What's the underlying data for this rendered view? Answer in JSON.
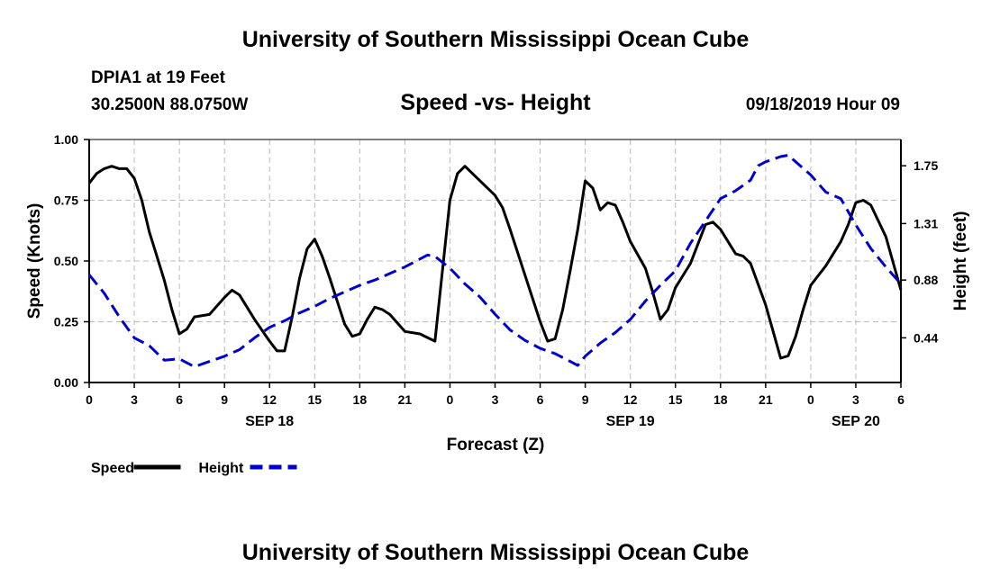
{
  "header": {
    "title": "University of Southern Mississippi Ocean Cube",
    "station": "DPIA1 at 19 Feet",
    "coords": "30.2500N 88.0750W",
    "subtitle": "Speed -vs- Height",
    "datetime": "09/18/2019 Hour 09"
  },
  "footer": {
    "title": "University of Southern Mississippi Ocean Cube"
  },
  "chart_data": {
    "type": "line",
    "title": "Speed -vs- Height",
    "xlabel": "Forecast (Z)",
    "ylabel": "Speed (Knots)",
    "y2label": "Height (feet)",
    "x_unit": "hours since 2019-09-18 00Z",
    "xlim": [
      0,
      54
    ],
    "ylim": [
      0,
      1.0
    ],
    "y2lim": [
      0.1,
      1.95
    ],
    "grid": true,
    "x_ticks": [
      {
        "x": 0,
        "label": "0"
      },
      {
        "x": 3,
        "label": "3"
      },
      {
        "x": 6,
        "label": "6"
      },
      {
        "x": 9,
        "label": "9"
      },
      {
        "x": 12,
        "label": "12"
      },
      {
        "x": 15,
        "label": "15"
      },
      {
        "x": 18,
        "label": "18"
      },
      {
        "x": 21,
        "label": "21"
      },
      {
        "x": 24,
        "label": "0"
      },
      {
        "x": 27,
        "label": "3"
      },
      {
        "x": 30,
        "label": "6"
      },
      {
        "x": 33,
        "label": "9"
      },
      {
        "x": 36,
        "label": "12"
      },
      {
        "x": 39,
        "label": "15"
      },
      {
        "x": 42,
        "label": "18"
      },
      {
        "x": 45,
        "label": "21"
      },
      {
        "x": 48,
        "label": "0"
      },
      {
        "x": 51,
        "label": "3"
      },
      {
        "x": 54,
        "label": "6"
      }
    ],
    "date_labels": [
      {
        "x": 12,
        "label": "SEP 18"
      },
      {
        "x": 36,
        "label": "SEP 19"
      },
      {
        "x": 51,
        "label": "SEP 20"
      }
    ],
    "y_ticks": [
      {
        "v": 0.0,
        "label": "0.00"
      },
      {
        "v": 0.25,
        "label": "0.25"
      },
      {
        "v": 0.5,
        "label": "0.50"
      },
      {
        "v": 0.75,
        "label": "0.75"
      },
      {
        "v": 1.0,
        "label": "1.00"
      }
    ],
    "y2_ticks": [
      {
        "v": 0.44,
        "label": "0.44"
      },
      {
        "v": 0.88,
        "label": "0.88"
      },
      {
        "v": 1.31,
        "label": "1.31"
      },
      {
        "v": 1.75,
        "label": "1.75"
      }
    ],
    "series": [
      {
        "name": "Speed",
        "axis": "left",
        "color": "#000000",
        "dash": "",
        "points": [
          [
            0,
            0.82
          ],
          [
            0.5,
            0.86
          ],
          [
            1,
            0.88
          ],
          [
            1.5,
            0.89
          ],
          [
            2,
            0.88
          ],
          [
            2.5,
            0.88
          ],
          [
            3,
            0.84
          ],
          [
            3.5,
            0.75
          ],
          [
            4,
            0.62
          ],
          [
            4.5,
            0.52
          ],
          [
            5,
            0.42
          ],
          [
            5.5,
            0.3
          ],
          [
            6,
            0.2
          ],
          [
            6.5,
            0.22
          ],
          [
            7,
            0.27
          ],
          [
            8,
            0.28
          ],
          [
            9,
            0.35
          ],
          [
            9.5,
            0.38
          ],
          [
            10,
            0.36
          ],
          [
            11,
            0.26
          ],
          [
            12,
            0.17
          ],
          [
            12.5,
            0.13
          ],
          [
            13,
            0.13
          ],
          [
            13.5,
            0.27
          ],
          [
            14,
            0.43
          ],
          [
            14.5,
            0.55
          ],
          [
            15,
            0.59
          ],
          [
            15.5,
            0.52
          ],
          [
            16,
            0.43
          ],
          [
            17,
            0.24
          ],
          [
            17.5,
            0.19
          ],
          [
            18,
            0.2
          ],
          [
            18.5,
            0.26
          ],
          [
            19,
            0.31
          ],
          [
            19.5,
            0.3
          ],
          [
            20,
            0.28
          ],
          [
            21,
            0.21
          ],
          [
            22,
            0.2
          ],
          [
            23,
            0.17
          ],
          [
            24,
            0.75
          ],
          [
            24.5,
            0.86
          ],
          [
            25,
            0.89
          ],
          [
            26,
            0.83
          ],
          [
            27,
            0.77
          ],
          [
            27.5,
            0.72
          ],
          [
            28,
            0.63
          ],
          [
            29,
            0.44
          ],
          [
            30,
            0.25
          ],
          [
            30.5,
            0.17
          ],
          [
            31,
            0.18
          ],
          [
            31.5,
            0.3
          ],
          [
            32,
            0.46
          ],
          [
            32.5,
            0.63
          ],
          [
            33,
            0.83
          ],
          [
            33.5,
            0.8
          ],
          [
            34,
            0.71
          ],
          [
            34.5,
            0.74
          ],
          [
            35,
            0.73
          ],
          [
            35.5,
            0.66
          ],
          [
            36,
            0.58
          ],
          [
            37,
            0.47
          ],
          [
            37.5,
            0.37
          ],
          [
            38,
            0.26
          ],
          [
            38.5,
            0.3
          ],
          [
            39,
            0.39
          ],
          [
            40,
            0.49
          ],
          [
            41,
            0.65
          ],
          [
            41.5,
            0.66
          ],
          [
            42,
            0.63
          ],
          [
            43,
            0.53
          ],
          [
            43.5,
            0.52
          ],
          [
            44,
            0.49
          ],
          [
            45,
            0.32
          ],
          [
            45.5,
            0.21
          ],
          [
            46,
            0.1
          ],
          [
            46.5,
            0.11
          ],
          [
            47,
            0.19
          ],
          [
            47.5,
            0.3
          ],
          [
            48,
            0.4
          ],
          [
            49,
            0.48
          ],
          [
            50,
            0.58
          ],
          [
            50.5,
            0.65
          ],
          [
            51,
            0.74
          ],
          [
            51.5,
            0.75
          ],
          [
            52,
            0.73
          ],
          [
            53,
            0.6
          ],
          [
            54,
            0.38
          ]
        ]
      },
      {
        "name": "Height",
        "axis": "right",
        "color": "#0000cc",
        "dash": "14,7",
        "points": [
          [
            0,
            0.92
          ],
          [
            1,
            0.78
          ],
          [
            2,
            0.6
          ],
          [
            3,
            0.44
          ],
          [
            4,
            0.38
          ],
          [
            5,
            0.27
          ],
          [
            6,
            0.28
          ],
          [
            7,
            0.22
          ],
          [
            8,
            0.26
          ],
          [
            9,
            0.3
          ],
          [
            10,
            0.35
          ],
          [
            11,
            0.44
          ],
          [
            12,
            0.52
          ],
          [
            13,
            0.57
          ],
          [
            14,
            0.63
          ],
          [
            15,
            0.68
          ],
          [
            16,
            0.74
          ],
          [
            17,
            0.79
          ],
          [
            18,
            0.84
          ],
          [
            19,
            0.88
          ],
          [
            20,
            0.93
          ],
          [
            21,
            0.98
          ],
          [
            22,
            1.04
          ],
          [
            22.5,
            1.07
          ],
          [
            23,
            1.06
          ],
          [
            24,
            0.97
          ],
          [
            25,
            0.85
          ],
          [
            26,
            0.75
          ],
          [
            27,
            0.62
          ],
          [
            28,
            0.5
          ],
          [
            29,
            0.42
          ],
          [
            30,
            0.36
          ],
          [
            31,
            0.32
          ],
          [
            32,
            0.26
          ],
          [
            32.5,
            0.23
          ],
          [
            33,
            0.3
          ],
          [
            34,
            0.4
          ],
          [
            35,
            0.48
          ],
          [
            36,
            0.58
          ],
          [
            37,
            0.72
          ],
          [
            38,
            0.84
          ],
          [
            39,
            0.95
          ],
          [
            40,
            1.16
          ],
          [
            41,
            1.33
          ],
          [
            42,
            1.5
          ],
          [
            43,
            1.56
          ],
          [
            44,
            1.64
          ],
          [
            44.5,
            1.75
          ],
          [
            45,
            1.78
          ],
          [
            46,
            1.82
          ],
          [
            46.5,
            1.83
          ],
          [
            47,
            1.78
          ],
          [
            48,
            1.68
          ],
          [
            49,
            1.55
          ],
          [
            50,
            1.5
          ],
          [
            51,
            1.3
          ],
          [
            52,
            1.12
          ],
          [
            53,
            0.98
          ],
          [
            54,
            0.85
          ]
        ]
      }
    ],
    "legend": [
      {
        "name": "Speed",
        "color": "#000000",
        "dash": ""
      },
      {
        "name": "Height",
        "color": "#0000cc",
        "dash": "14,7"
      }
    ],
    "legend_position": "bottom-left"
  }
}
